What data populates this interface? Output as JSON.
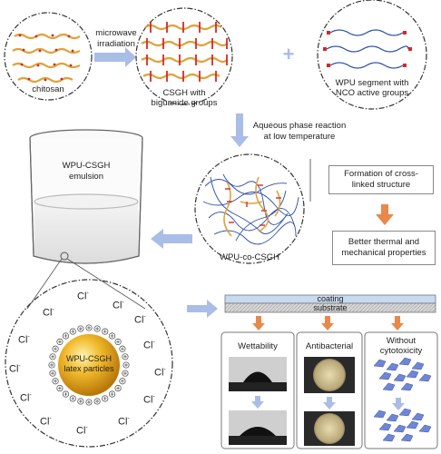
{
  "labels": {
    "chitosan": "chitosan",
    "microwave": "microwave",
    "irradiation": "irradiation",
    "csgh_with": "CSGH with",
    "biguanide_groups": "biguanide groups",
    "plus": "+",
    "wpu_segment_1": "WPU segment with",
    "wpu_segment_2": "NCO active groups",
    "aqueous_1": "Aqueous phase reaction",
    "aqueous_2": "at low temperature",
    "emulsion_1": "WPU-CSGH",
    "emulsion_2": "emulsion",
    "formation_1": "Formation of cross-",
    "formation_2": "linked structure",
    "better_1": "Better thermal and",
    "better_2": "mechanical properties",
    "wpu_co_csgh": "WPU-co-CSGH",
    "latex_1": "WPU-CSGH",
    "latex_2": "latex particles",
    "chloride": "Cl",
    "chloride_charge": "-",
    "coating": "coating",
    "substrate": "substrate",
    "wettability": "Wettability",
    "antibacterial": "Antibacterial",
    "cyto_1": "Without",
    "cyto_2": "cytotoxicity"
  },
  "colors": {
    "orange_chain": "#e0a23a",
    "red_group": "#d62828",
    "blue_chain": "#2a4fa8",
    "arrow_blue": "#a9bde6",
    "arrow_orange": "#e8884a",
    "latex_gold": "#e0a21a"
  }
}
